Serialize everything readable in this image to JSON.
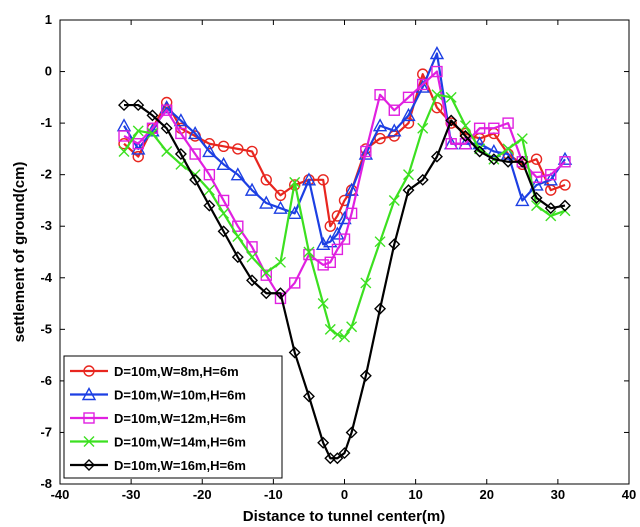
{
  "chart_data": {
    "type": "line",
    "title": "",
    "xlabel": "Distance to tunnel center(m)",
    "ylabel": "settlement of ground(cm)",
    "xlim": [
      -40,
      40
    ],
    "ylim": [
      -8,
      1
    ],
    "xticks": [
      -40,
      -30,
      -20,
      -10,
      0,
      10,
      20,
      30,
      40
    ],
    "yticks": [
      1,
      0,
      -1,
      -2,
      -3,
      -4,
      -5,
      -6,
      -7,
      -8
    ],
    "grid": false,
    "legend_position": "bottom-left",
    "series": [
      {
        "name": "D=10m,W=8m,H=6m",
        "color": "#e8261f",
        "marker": "circle",
        "x": [
          -31,
          -29,
          -27,
          -25,
          -23,
          -21,
          -19,
          -17,
          -15,
          -13,
          -11,
          -9,
          -7,
          -5,
          -3,
          -2,
          -1,
          0,
          1,
          3,
          5,
          7,
          9,
          11,
          13,
          15,
          17,
          19,
          21,
          23,
          25,
          27,
          29,
          31
        ],
        "y": [
          -1.4,
          -1.65,
          -1.1,
          -0.6,
          -1.1,
          -1.25,
          -1.4,
          -1.45,
          -1.5,
          -1.55,
          -2.1,
          -2.4,
          -2.2,
          -2.1,
          -2.1,
          -3.0,
          -2.8,
          -2.5,
          -2.3,
          -1.5,
          -1.3,
          -1.25,
          -1.0,
          -0.05,
          -0.7,
          -1.0,
          -1.2,
          -1.3,
          -1.2,
          -1.6,
          -1.8,
          -1.7,
          -2.3,
          -2.2
        ]
      },
      {
        "name": "D=10m,W=10m,H=6m",
        "color": "#1c3fe3",
        "marker": "triangle",
        "x": [
          -31,
          -29,
          -27,
          -25,
          -23,
          -21,
          -19,
          -17,
          -15,
          -13,
          -11,
          -9,
          -7,
          -5,
          -3,
          -2,
          -1,
          0,
          1,
          3,
          5,
          7,
          9,
          11,
          13,
          15,
          17,
          19,
          21,
          23,
          25,
          27,
          29,
          31
        ],
        "y": [
          -1.05,
          -1.5,
          -1.15,
          -0.7,
          -0.95,
          -1.2,
          -1.55,
          -1.8,
          -2.0,
          -2.3,
          -2.55,
          -2.65,
          -2.75,
          -2.1,
          -3.35,
          -3.3,
          -3.15,
          -2.85,
          -2.3,
          -1.6,
          -1.05,
          -1.15,
          -0.85,
          -0.3,
          0.35,
          -1.4,
          -1.4,
          -1.4,
          -1.55,
          -1.6,
          -2.5,
          -2.2,
          -2.1,
          -1.7
        ]
      },
      {
        "name": "D=10m,W=12m,H=6m",
        "color": "#e020e0",
        "marker": "square",
        "x": [
          -31,
          -29,
          -27,
          -25,
          -23,
          -21,
          -19,
          -17,
          -15,
          -13,
          -11,
          -9,
          -7,
          -5,
          -3,
          -2,
          -1,
          0,
          1,
          3,
          5,
          7,
          9,
          11,
          13,
          15,
          17,
          19,
          21,
          23,
          25,
          27,
          29,
          31
        ],
        "y": [
          -1.25,
          -1.4,
          -1.1,
          -0.75,
          -1.2,
          -1.6,
          -2.0,
          -2.5,
          -3.0,
          -3.4,
          -3.95,
          -4.4,
          -4.1,
          -3.55,
          -3.75,
          -3.7,
          -3.45,
          -3.25,
          -2.75,
          -1.55,
          -0.45,
          -0.75,
          -0.5,
          -0.25,
          0.0,
          -1.4,
          -1.4,
          -1.1,
          -1.1,
          -1.0,
          -1.75,
          -2.05,
          -2.0,
          -1.75
        ]
      },
      {
        "name": "D=10m,W=14m,H=6m",
        "color": "#3ce020",
        "marker": "x",
        "x": [
          -31,
          -29,
          -27,
          -25,
          -23,
          -21,
          -19,
          -17,
          -15,
          -13,
          -11,
          -9,
          -7,
          -5,
          -3,
          -2,
          -1,
          0,
          1,
          3,
          5,
          7,
          9,
          11,
          13,
          15,
          17,
          19,
          21,
          23,
          25,
          27,
          29,
          31
        ],
        "y": [
          -1.55,
          -1.15,
          -1.2,
          -1.55,
          -1.8,
          -2.0,
          -2.3,
          -2.75,
          -3.2,
          -3.6,
          -3.9,
          -3.7,
          -2.15,
          -3.5,
          -4.5,
          -5.0,
          -5.1,
          -5.15,
          -4.95,
          -4.1,
          -3.3,
          -2.5,
          -2.0,
          -1.1,
          -0.45,
          -0.5,
          -1.05,
          -1.5,
          -1.7,
          -1.5,
          -1.3,
          -2.6,
          -2.8,
          -2.7
        ]
      },
      {
        "name": "D=10m,W=16m,H=6m",
        "color": "#000000",
        "marker": "diamond",
        "x": [
          -31,
          -29,
          -27,
          -25,
          -23,
          -21,
          -19,
          -17,
          -15,
          -13,
          -11,
          -9,
          -7,
          -5,
          -3,
          -2,
          -1,
          0,
          1,
          3,
          5,
          7,
          9,
          11,
          13,
          15,
          17,
          19,
          21,
          23,
          25,
          27,
          29,
          31
        ],
        "y": [
          -0.65,
          -0.65,
          -0.85,
          -1.1,
          -1.6,
          -2.1,
          -2.6,
          -3.1,
          -3.6,
          -4.05,
          -4.3,
          -4.3,
          -5.45,
          -6.3,
          -7.2,
          -7.5,
          -7.5,
          -7.4,
          -7.0,
          -5.9,
          -4.6,
          -3.35,
          -2.3,
          -2.1,
          -1.65,
          -0.95,
          -1.25,
          -1.55,
          -1.7,
          -1.75,
          -1.75,
          -2.45,
          -2.65,
          -2.6
        ]
      }
    ]
  }
}
